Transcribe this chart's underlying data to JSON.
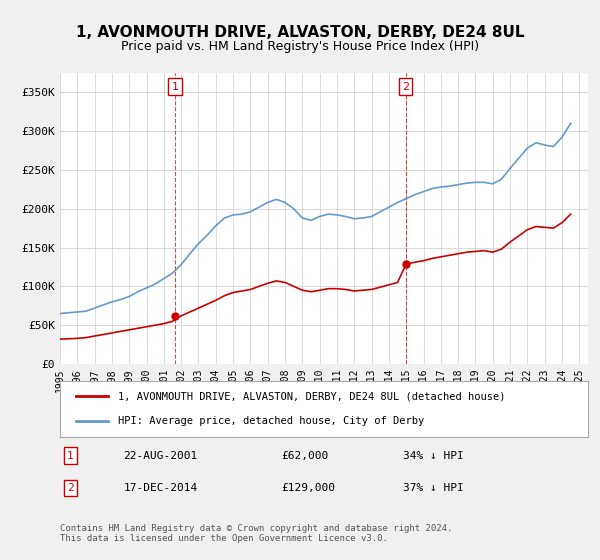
{
  "title": "1, AVONMOUTH DRIVE, ALVASTON, DERBY, DE24 8UL",
  "subtitle": "Price paid vs. HM Land Registry's House Price Index (HPI)",
  "xlabel": "",
  "ylabel": "",
  "ylim": [
    0,
    375000
  ],
  "yticks": [
    0,
    50000,
    100000,
    150000,
    200000,
    250000,
    300000,
    350000
  ],
  "ytick_labels": [
    "£0",
    "£50K",
    "£100K",
    "£150K",
    "£200K",
    "£250K",
    "£300K",
    "£350K"
  ],
  "bg_color": "#f0f0f0",
  "plot_bg_color": "#ffffff",
  "red_color": "#cc0000",
  "blue_color": "#6699cc",
  "sale1_date_idx": 6.6,
  "sale1_price": 62000,
  "sale1_label": "1",
  "sale1_year": 2001.65,
  "sale2_date_idx": 19.95,
  "sale2_price": 129000,
  "sale2_label": "2",
  "sale2_year": 2014.96,
  "legend_red_label": "1, AVONMOUTH DRIVE, ALVASTON, DERBY, DE24 8UL (detached house)",
  "legend_blue_label": "HPI: Average price, detached house, City of Derby",
  "footer_text": "Contains HM Land Registry data © Crown copyright and database right 2024.\nThis data is licensed under the Open Government Licence v3.0.",
  "table_rows": [
    {
      "num": "1",
      "date": "22-AUG-2001",
      "price": "£62,000",
      "hpi": "34% ↓ HPI"
    },
    {
      "num": "2",
      "date": "17-DEC-2014",
      "price": "£129,000",
      "hpi": "37% ↓ HPI"
    }
  ],
  "x_start_year": 1995,
  "x_end_year": 2025,
  "hpi_data": {
    "years": [
      1995.0,
      1995.5,
      1996.0,
      1996.5,
      1997.0,
      1997.5,
      1998.0,
      1998.5,
      1999.0,
      1999.5,
      2000.0,
      2000.5,
      2001.0,
      2001.5,
      2002.0,
      2002.5,
      2003.0,
      2003.5,
      2004.0,
      2004.5,
      2005.0,
      2005.5,
      2006.0,
      2006.5,
      2007.0,
      2007.5,
      2008.0,
      2008.5,
      2009.0,
      2009.5,
      2010.0,
      2010.5,
      2011.0,
      2011.5,
      2012.0,
      2012.5,
      2013.0,
      2013.5,
      2014.0,
      2014.5,
      2015.0,
      2015.5,
      2016.0,
      2016.5,
      2017.0,
      2017.5,
      2018.0,
      2018.5,
      2019.0,
      2019.5,
      2020.0,
      2020.5,
      2021.0,
      2021.5,
      2022.0,
      2022.5,
      2023.0,
      2023.5,
      2024.0,
      2024.5
    ],
    "values": [
      65000,
      66000,
      67000,
      68000,
      72000,
      76000,
      80000,
      83000,
      87000,
      93000,
      98000,
      103000,
      110000,
      117000,
      128000,
      142000,
      155000,
      166000,
      178000,
      188000,
      192000,
      193000,
      196000,
      202000,
      208000,
      212000,
      208000,
      200000,
      188000,
      185000,
      190000,
      193000,
      192000,
      190000,
      187000,
      188000,
      190000,
      196000,
      202000,
      208000,
      213000,
      218000,
      222000,
      226000,
      228000,
      229000,
      231000,
      233000,
      234000,
      234000,
      232000,
      238000,
      252000,
      265000,
      278000,
      285000,
      282000,
      280000,
      292000,
      310000
    ]
  },
  "red_data": {
    "years": [
      1995.0,
      1995.5,
      1996.0,
      1996.5,
      1997.0,
      1997.5,
      1998.0,
      1998.5,
      1999.0,
      1999.5,
      2000.0,
      2000.5,
      2001.0,
      2001.5,
      2002.0,
      2002.5,
      2003.0,
      2003.5,
      2004.0,
      2004.5,
      2005.0,
      2005.5,
      2006.0,
      2006.5,
      2007.0,
      2007.5,
      2008.0,
      2008.5,
      2009.0,
      2009.5,
      2010.0,
      2010.5,
      2011.0,
      2011.5,
      2012.0,
      2012.5,
      2013.0,
      2013.5,
      2014.0,
      2014.5,
      2015.0,
      2015.5,
      2016.0,
      2016.5,
      2017.0,
      2017.5,
      2018.0,
      2018.5,
      2019.0,
      2019.5,
      2020.0,
      2020.5,
      2021.0,
      2021.5,
      2022.0,
      2022.5,
      2023.0,
      2023.5,
      2024.0,
      2024.5
    ],
    "values": [
      32000,
      32500,
      33000,
      34000,
      36000,
      38000,
      40000,
      42000,
      44000,
      46000,
      48000,
      50000,
      52000,
      55000,
      62000,
      67000,
      72000,
      77000,
      82000,
      88000,
      92000,
      94000,
      96000,
      100000,
      104000,
      107000,
      105000,
      100000,
      95000,
      93000,
      95000,
      97000,
      97000,
      96000,
      94000,
      95000,
      96000,
      99000,
      102000,
      105000,
      129000,
      131000,
      133000,
      136000,
      138000,
      140000,
      142000,
      144000,
      145000,
      146000,
      144000,
      148000,
      157000,
      165000,
      173000,
      177000,
      176000,
      175000,
      182000,
      193000
    ]
  }
}
